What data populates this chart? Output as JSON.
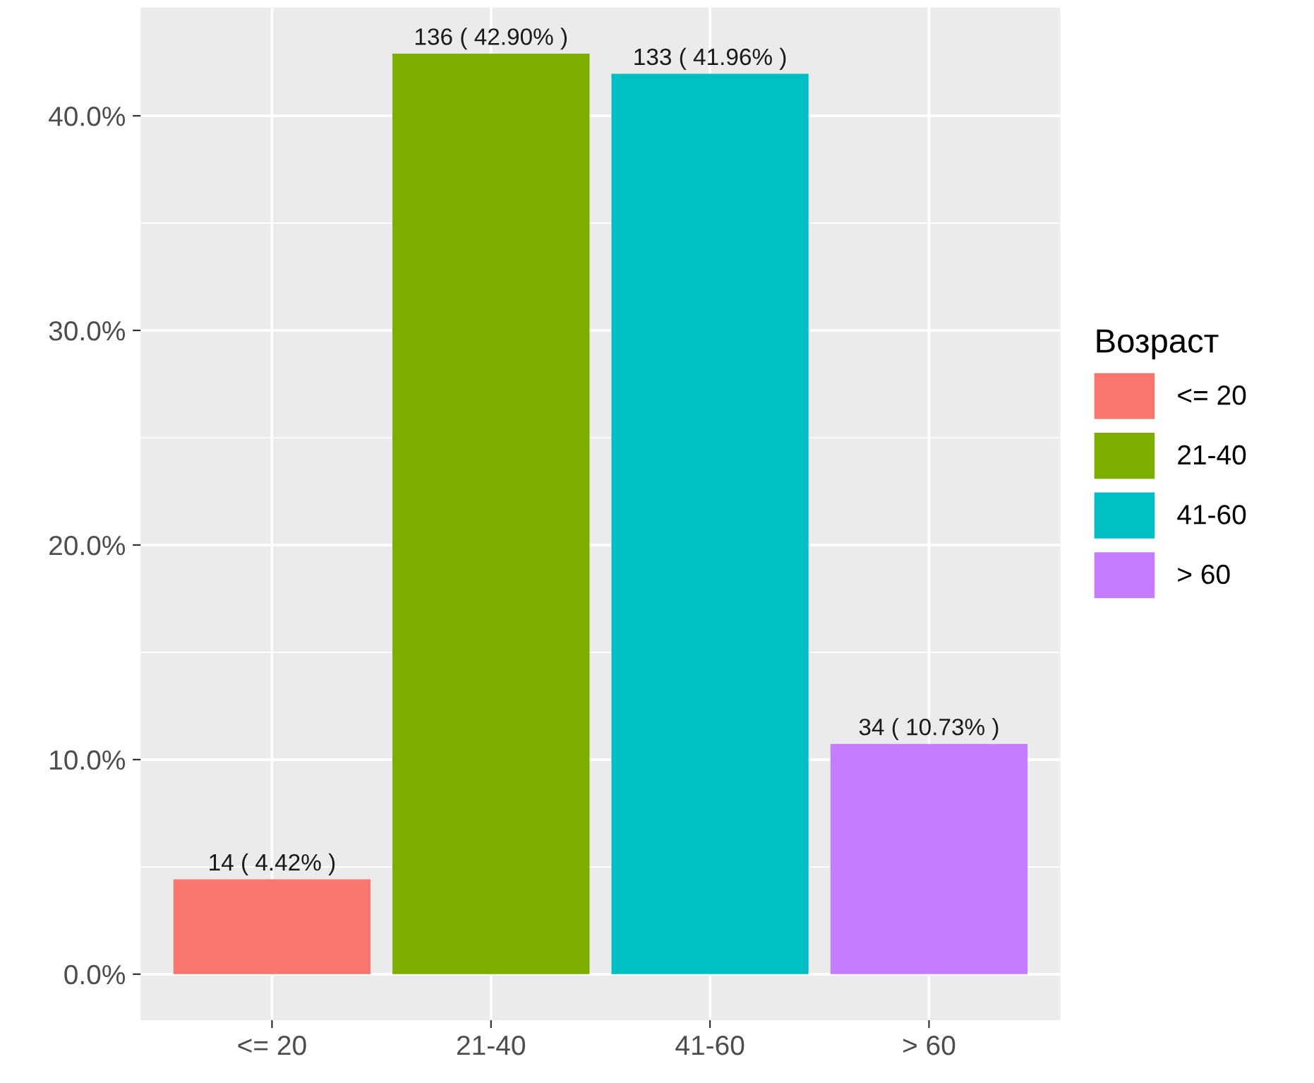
{
  "chart_data": {
    "type": "bar",
    "legend_title": "Возраст",
    "categories": [
      "<= 20",
      "21-40",
      "41-60",
      "> 60"
    ],
    "series": [
      {
        "name": "<= 20",
        "color": "#f8766d",
        "values": [
          4.42,
          null,
          null,
          null
        ],
        "value_labels": [
          "14 ( 4.42% )",
          null,
          null,
          null
        ]
      },
      {
        "name": "21-40",
        "color": "#7cae00",
        "values": [
          null,
          42.9,
          null,
          null
        ],
        "value_labels": [
          null,
          "136 ( 42.90% )",
          null,
          null
        ]
      },
      {
        "name": "41-60",
        "color": "#00bfc4",
        "values": [
          null,
          null,
          41.96,
          null
        ],
        "value_labels": [
          null,
          null,
          "133 ( 41.96% )",
          null
        ]
      },
      {
        "name": "> 60",
        "color": "#c77cff",
        "values": [
          null,
          null,
          null,
          10.73
        ],
        "value_labels": [
          null,
          null,
          null,
          "34 ( 10.73% )"
        ]
      }
    ],
    "ylim": [
      -2.145,
      45.045
    ],
    "yticks": [
      {
        "value": 0,
        "label": "0.0%"
      },
      {
        "value": 5,
        "label": null
      },
      {
        "value": 10,
        "label": "10.0%"
      },
      {
        "value": 15,
        "label": null
      },
      {
        "value": 20,
        "label": "20.0%"
      },
      {
        "value": 25,
        "label": null
      },
      {
        "value": 30,
        "label": "30.0%"
      },
      {
        "value": 35,
        "label": null
      },
      {
        "value": 40,
        "label": "40.0%"
      }
    ],
    "grid": true,
    "legend": "right"
  }
}
